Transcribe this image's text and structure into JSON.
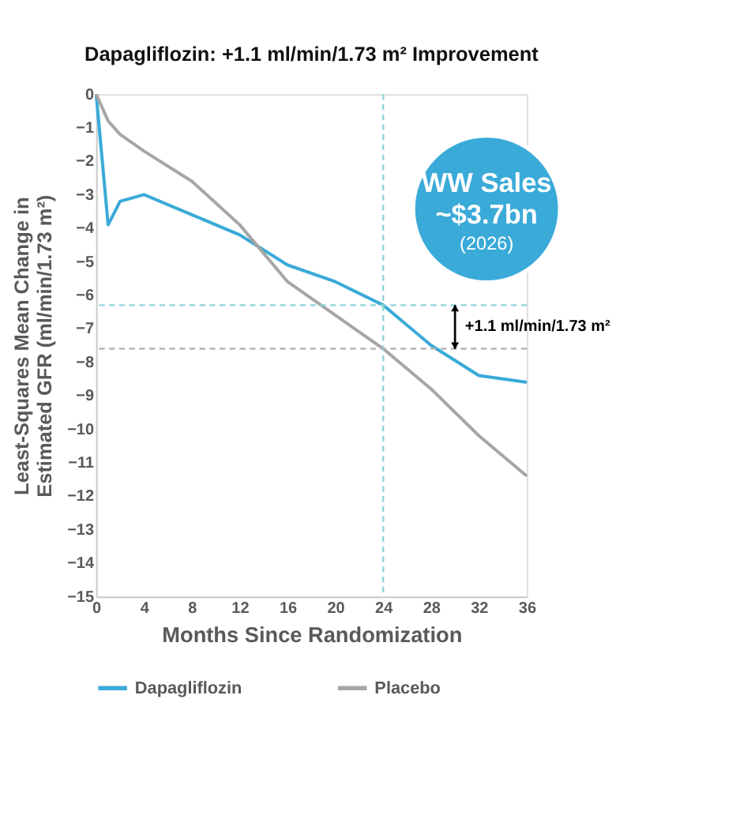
{
  "chart_data": {
    "type": "line",
    "title": "Dapagliflozin: +1.1 ml/min/1.73 m² Improvement",
    "xlabel": "Months Since Randomization",
    "ylabel": "Least-Squares Mean Change in Estimated GFR (ml/min/1.73 m²)",
    "x": [
      0,
      1,
      2,
      4,
      8,
      12,
      16,
      20,
      24,
      28,
      32,
      36
    ],
    "series": [
      {
        "name": "Dapagliflozin",
        "color": "#3aaad8",
        "values": [
          0,
          -3.9,
          -3.2,
          -3.0,
          -3.6,
          -4.2,
          -5.1,
          -5.6,
          -6.3,
          -7.5,
          -8.4,
          -8.6
        ]
      },
      {
        "name": "Placebo",
        "color": "#a6a6a6",
        "values": [
          0,
          -0.8,
          -1.2,
          -1.7,
          -2.6,
          -3.9,
          -5.6,
          -6.6,
          -7.6,
          -8.8,
          -10.2,
          -11.4
        ]
      }
    ],
    "xlim": [
      0,
      36
    ],
    "xticks": [
      0,
      4,
      8,
      12,
      16,
      20,
      24,
      28,
      32,
      36
    ],
    "ylim": [
      -15,
      0
    ],
    "yticks": [
      0,
      -1,
      -2,
      -3,
      -4,
      -5,
      -6,
      -7,
      -8,
      -9,
      -10,
      -11,
      -12,
      -13,
      -14,
      -15
    ],
    "ref_lines": [
      {
        "axis": "x",
        "value": 24,
        "color": "#8fd3d6",
        "line_style": "dashed"
      },
      {
        "axis": "y",
        "value": -6.3,
        "color": "#8fd3d6",
        "line_style": "dashed"
      },
      {
        "axis": "y",
        "value": -7.6,
        "color": "#b5b5b5",
        "line_style": "dashed"
      }
    ],
    "annotations": [
      "+1.1 ml/min/1.73 m²",
      "WW Sales",
      "~$3.7bn",
      "(2026)"
    ],
    "grid": false,
    "legend": "bottom",
    "marker": "none",
    "line_style": "solid"
  }
}
